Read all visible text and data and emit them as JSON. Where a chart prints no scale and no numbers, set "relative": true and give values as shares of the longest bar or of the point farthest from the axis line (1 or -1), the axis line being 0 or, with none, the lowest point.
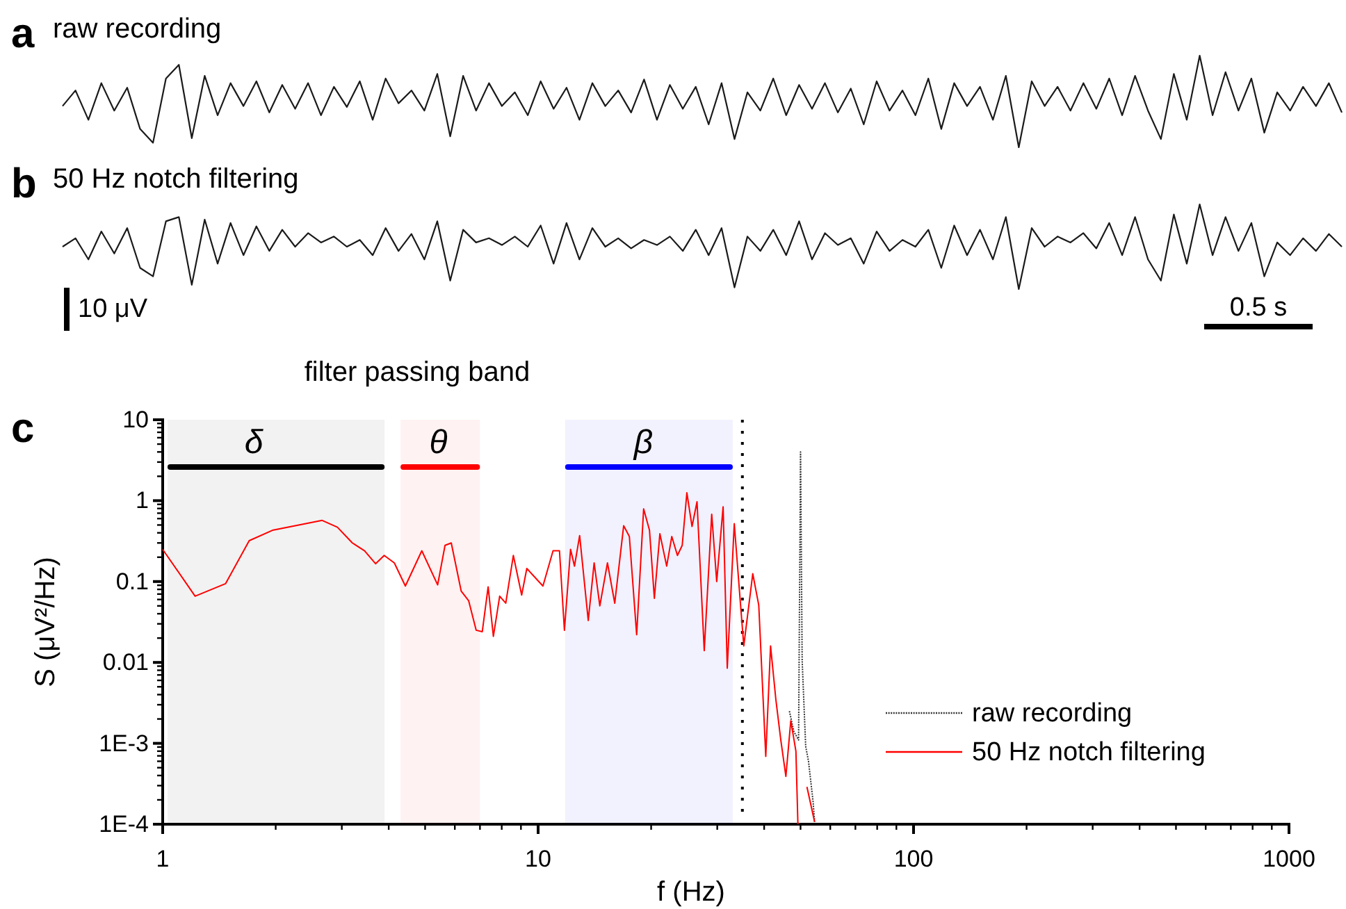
{
  "chart_data": [
    {
      "type": "line",
      "title": "raw recording",
      "relative": true,
      "annotations": [
        "a"
      ],
      "tick_labels": false,
      "legend": false,
      "categories": [
        null,
        null,
        null,
        null,
        null,
        null,
        null,
        null,
        null,
        null,
        null,
        null,
        null,
        null,
        null,
        null,
        null,
        null,
        null,
        null,
        null,
        null,
        null,
        null,
        null,
        null,
        null,
        null,
        null,
        null,
        null,
        null,
        null,
        null,
        null,
        null,
        null,
        null,
        null,
        null,
        null,
        null,
        null,
        null,
        null,
        null,
        null,
        null,
        null,
        null,
        null,
        null,
        null,
        null,
        null,
        null,
        null,
        null,
        null,
        null,
        null,
        null,
        null,
        null,
        null,
        null,
        null,
        null,
        null,
        null,
        null,
        null,
        null,
        null,
        null,
        null,
        null,
        null,
        null,
        null,
        null,
        null,
        null,
        null,
        null,
        null,
        null,
        null,
        null,
        null,
        null,
        null,
        null,
        null,
        null,
        null,
        null,
        null,
        null,
        null
      ],
      "series": [
        {
          "color": "#1a1a1a",
          "values": [
            0.45,
            0.62,
            0.3,
            0.7,
            0.4,
            0.65,
            0.2,
            0.05,
            0.75,
            0.9,
            0.1,
            0.78,
            0.35,
            0.7,
            0.45,
            0.72,
            0.38,
            0.68,
            0.42,
            0.7,
            0.35,
            0.66,
            0.44,
            0.72,
            0.3,
            0.75,
            0.48,
            0.62,
            0.4,
            0.8,
            0.12,
            0.78,
            0.4,
            0.7,
            0.45,
            0.6,
            0.35,
            0.72,
            0.42,
            0.65,
            0.3,
            0.7,
            0.45,
            0.62,
            0.38,
            0.74,
            0.3,
            0.68,
            0.42,
            0.66,
            0.25,
            0.7,
            0.09,
            0.6,
            0.4,
            0.75,
            0.35,
            0.68,
            0.42,
            0.7,
            0.38,
            0.64,
            0.25,
            0.72,
            0.4,
            0.62,
            0.35,
            0.75,
            0.2,
            0.7,
            0.45,
            0.66,
            0.3,
            0.78,
            0.0,
            0.72,
            0.45,
            0.66,
            0.4,
            0.7,
            0.42,
            0.75,
            0.35,
            0.78,
            0.4,
            0.09,
            0.8,
            0.3,
            1.0,
            0.35,
            0.82,
            0.4,
            0.75,
            0.16,
            0.6,
            0.4,
            0.66,
            0.45,
            0.7,
            0.38
          ]
        }
      ]
    },
    {
      "type": "line",
      "title": "50 Hz notch filtering",
      "relative": true,
      "annotations": [
        "b",
        "10 μV",
        "0.5 s"
      ],
      "tick_labels": false,
      "legend": false,
      "categories": [
        null,
        null,
        null,
        null,
        null,
        null,
        null,
        null,
        null,
        null,
        null,
        null,
        null,
        null,
        null,
        null,
        null,
        null,
        null,
        null,
        null,
        null,
        null,
        null,
        null,
        null,
        null,
        null,
        null,
        null,
        null,
        null,
        null,
        null,
        null,
        null,
        null,
        null,
        null,
        null,
        null,
        null,
        null,
        null,
        null,
        null,
        null,
        null,
        null,
        null,
        null,
        null,
        null,
        null,
        null,
        null,
        null,
        null,
        null,
        null,
        null,
        null,
        null,
        null,
        null,
        null,
        null,
        null,
        null,
        null,
        null,
        null,
        null,
        null,
        null,
        null,
        null,
        null,
        null,
        null,
        null,
        null,
        null,
        null,
        null,
        null,
        null,
        null,
        null,
        null,
        null,
        null,
        null,
        null,
        null,
        null,
        null,
        null,
        null,
        null
      ],
      "series": [
        {
          "color": "#1a1a1a",
          "values": [
            0.5,
            0.6,
            0.35,
            0.68,
            0.42,
            0.72,
            0.25,
            0.15,
            0.8,
            0.85,
            0.05,
            0.82,
            0.3,
            0.78,
            0.4,
            0.74,
            0.45,
            0.7,
            0.5,
            0.66,
            0.55,
            0.62,
            0.5,
            0.58,
            0.4,
            0.72,
            0.45,
            0.65,
            0.35,
            0.8,
            0.1,
            0.7,
            0.55,
            0.6,
            0.52,
            0.62,
            0.5,
            0.75,
            0.3,
            0.78,
            0.35,
            0.72,
            0.5,
            0.6,
            0.48,
            0.58,
            0.52,
            0.62,
            0.45,
            0.7,
            0.4,
            0.72,
            0.02,
            0.62,
            0.45,
            0.7,
            0.4,
            0.8,
            0.35,
            0.66,
            0.52,
            0.6,
            0.3,
            0.68,
            0.45,
            0.58,
            0.5,
            0.7,
            0.25,
            0.75,
            0.4,
            0.7,
            0.35,
            0.85,
            0.0,
            0.72,
            0.5,
            0.62,
            0.55,
            0.66,
            0.48,
            0.78,
            0.4,
            0.85,
            0.35,
            0.1,
            0.88,
            0.3,
            1.0,
            0.4,
            0.85,
            0.45,
            0.78,
            0.15,
            0.55,
            0.4,
            0.6,
            0.45,
            0.65,
            0.5
          ]
        }
      ]
    },
    {
      "type": "line",
      "title": "filter passing band",
      "annotations": [
        "c"
      ],
      "xlabel": "f (Hz)",
      "ylabel": "S (μV²/Hz)",
      "log": "xy",
      "legend": "bottom right",
      "xlim": [
        1,
        1000
      ],
      "xticks": [
        1,
        10,
        100,
        1000
      ],
      "ylim": [
        0.0001,
        10
      ],
      "yticks": [
        10,
        1,
        0.1,
        0.01,
        {
          "value": 0.001,
          "label": "1E-3"
        },
        {
          "value": 0.0001,
          "label": "1E-4"
        }
      ],
      "ref_lines": [
        {
          "axis": "x",
          "value": 35,
          "color": "#000000",
          "line_style": "dotted"
        }
      ],
      "bands": [
        {
          "axis": "x",
          "from": 1.03,
          "to": 3.9,
          "label": "δ",
          "color": "#000000"
        },
        {
          "axis": "x",
          "from": 4.3,
          "to": 7.0,
          "label": "θ",
          "color": "#ff0000"
        },
        {
          "axis": "x",
          "from": 11.8,
          "to": 33,
          "label": "β",
          "color": "#0000ff"
        }
      ],
      "series": [
        {
          "name": "raw recording",
          "color": "#333333",
          "line_style": "dotted",
          "x": [
            46.7,
            48.0,
            49.4,
            50.0,
            50.5,
            51.6,
            52.5,
            54.0,
            54.5
          ],
          "values": [
            0.0025,
            0.0014,
            0.0011,
            4.0,
            0.0105,
            0.00092,
            0.0006,
            0.00019,
            0.000107
          ]
        },
        {
          "name": "50 Hz notch filtering",
          "color": "#ff0000",
          "line_style": "solid",
          "x": [
            1,
            1.22,
            1.47,
            1.7,
            1.96,
            2.66,
            2.92,
            3.2,
            3.45,
            3.69,
            3.89,
            4.14,
            4.43,
            4.9,
            5.4,
            5.65,
            5.87,
            6.24,
            6.53,
            6.84,
            7.1,
            7.36,
            7.6,
            7.9,
            8.2,
            8.59,
            9.04,
            9.33,
            10.3,
            10.96,
            11.4,
            11.75,
            12.2,
            12.5,
            12.9,
            13.6,
            14.1,
            14.6,
            15.3,
            16.0,
            16.9,
            17.5,
            18.3,
            19.1,
            19.8,
            20.4,
            21.1,
            22.0,
            22.7,
            23.5,
            24.2,
            24.9,
            25.7,
            26.5,
            27.7,
            29.0,
            29.9,
            31.1,
            31.9,
            33.3,
            34.5,
            35.3,
            37.3,
            38.7,
            40.4,
            41.6,
            43.0,
            44.3,
            45.7,
            47.1,
            48.6,
            49.2,
            50.5,
            52.0,
            54.5
          ],
          "values": [
            0.25,
            0.066,
            0.094,
            0.32,
            0.43,
            0.57,
            0.47,
            0.3,
            0.24,
            0.166,
            0.21,
            0.17,
            0.088,
            0.24,
            0.091,
            0.28,
            0.3,
            0.076,
            0.058,
            0.025,
            0.024,
            0.086,
            0.021,
            0.066,
            0.054,
            0.21,
            0.068,
            0.145,
            0.088,
            0.24,
            0.24,
            0.025,
            0.25,
            0.155,
            0.37,
            0.033,
            0.17,
            0.05,
            0.17,
            0.054,
            0.49,
            0.36,
            0.022,
            0.79,
            0.43,
            0.062,
            0.39,
            0.155,
            0.36,
            0.21,
            0.28,
            1.25,
            0.48,
            0.97,
            0.014,
            0.68,
            0.1,
            0.84,
            0.0085,
            0.52,
            0.062,
            0.016,
            0.125,
            0.051,
            0.00069,
            0.016,
            0.0034,
            0.0011,
            0.00039,
            0.0019,
            0.0008,
            0.0001,
            null,
            0.00029,
            0.000107
          ]
        }
      ]
    }
  ]
}
